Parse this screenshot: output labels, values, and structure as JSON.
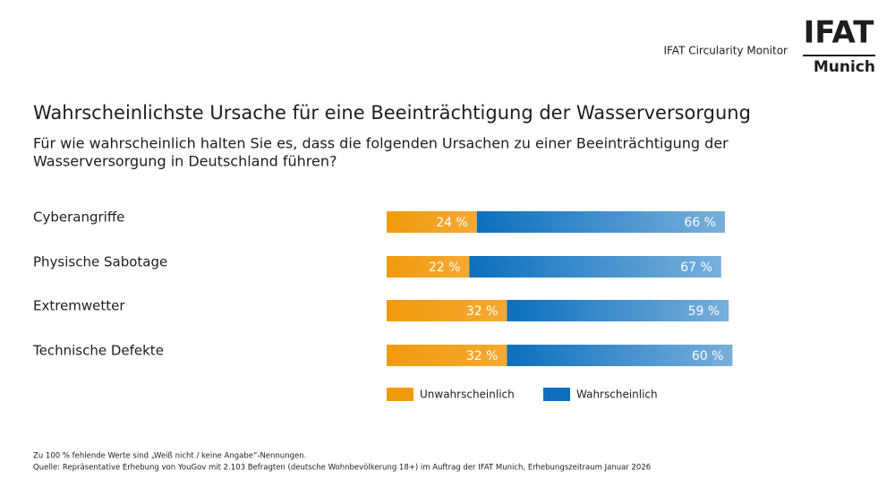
{
  "header": {
    "monitor": "IFAT Circularity Monitor",
    "logo_top": "IFAT",
    "logo_bottom": "Munich"
  },
  "chart_data": {
    "type": "stacked-bar-horizontal",
    "title": "Wahrscheinlichste Ursache für eine Beeinträchtigung der Wasserversorgung",
    "subtitle": [
      "Für wie wahrscheinlich halten Sie es, dass die folgenden Ursachen zu einer Beeinträchtigung der",
      "Wasserversorgung in Deutschland führen?"
    ],
    "categories": [
      "Cyberangriffe",
      "Physische Sabotage",
      "Extremwetter",
      "Technische Defekte"
    ],
    "series": [
      {
        "name": "Unwahrscheinlich",
        "color": "#f29a0e",
        "values": [
          24,
          22,
          32,
          32
        ],
        "value_labels": [
          "24 %",
          "22 %",
          "32 %",
          "32 %"
        ]
      },
      {
        "name": "Wahrscheinlich",
        "color": "#0b6fbe",
        "values": [
          66,
          67,
          59,
          60
        ],
        "value_labels": [
          "66 %",
          "67 %",
          "59 %",
          "60 %"
        ]
      }
    ]
  },
  "footnotes": [
    "Zu 100 % fehlende Werte sind „Weiß nicht / keine Angabe“-Nennungen.",
    "Quelle: Repräsentative Erhebung von YouGov mit 2.103 Befragten (deutsche Wohnbevölkerung 18+) im Auftrag der IFAT Munich, Erhebungszeitraum Januar 2026"
  ]
}
